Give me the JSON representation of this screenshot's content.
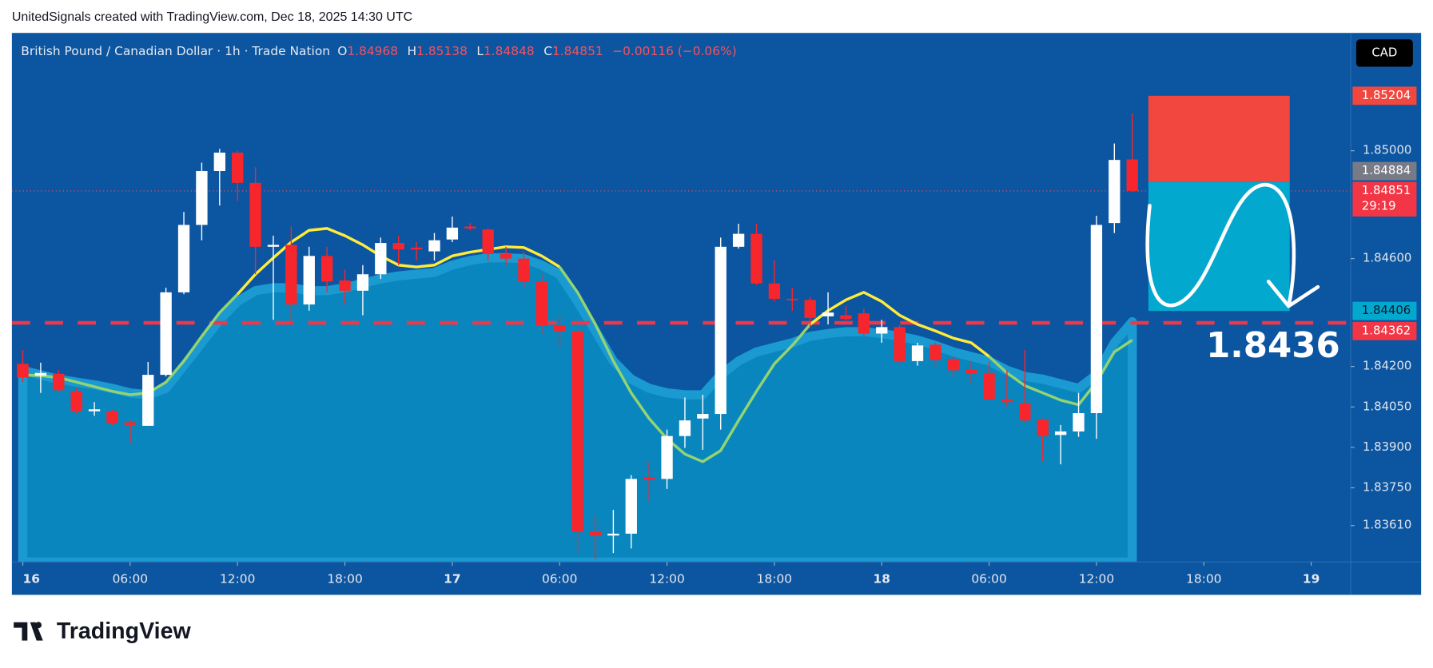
{
  "header": "UnitedSignals created with TradingView.com, Dec 18, 2025 14:30 UTC",
  "logo": "TradingView",
  "chart_data": {
    "type": "candlestick",
    "title": "British Pound / Canadian Dollar · 1h · Trade Nation",
    "ohlc_labels": [
      "O",
      "H",
      "L",
      "C"
    ],
    "change": "−0.00116 (−0.06%)",
    "currency": "CAD",
    "open": [
      1.8421,
      1.84166,
      1.84173,
      1.84108,
      1.84034,
      1.84034,
      1.83993,
      1.8398,
      1.84169,
      1.84475,
      1.84725,
      1.84925,
      1.84993,
      1.84881,
      1.84644,
      1.84651,
      1.8443,
      1.8461,
      1.84519,
      1.84481,
      1.84542,
      1.84658,
      1.84641,
      1.84627,
      1.84671,
      1.84719,
      1.84708,
      1.84617,
      1.846,
      1.84515,
      1.84353,
      1.84332,
      1.83586,
      1.83573,
      1.8358,
      1.8379,
      1.83783,
      1.83942,
      1.84007,
      1.84024,
      1.84644,
      1.84692,
      1.84508,
      1.84451,
      1.84447,
      1.84386,
      1.8439,
      1.84397,
      1.84322,
      1.84346,
      1.8422,
      1.84281,
      1.84227,
      1.8419,
      1.84176,
      1.84078,
      1.84064,
      1.84003,
      1.83946,
      1.83959,
      1.84027,
      1.84732,
      1.84968
    ],
    "high": [
      1.84261,
      1.84214,
      1.84186,
      1.84119,
      1.84068,
      1.84041,
      1.84,
      1.84217,
      1.84492,
      1.84773,
      1.84956,
      1.85007,
      1.85,
      1.84939,
      1.84685,
      1.84719,
      1.84644,
      1.84644,
      1.84559,
      1.84576,
      1.84678,
      1.84685,
      1.84661,
      1.84695,
      1.84756,
      1.84732,
      1.84712,
      1.84644,
      1.84627,
      1.84542,
      1.8439,
      1.84339,
      1.83644,
      1.83668,
      1.83797,
      1.83847,
      1.83966,
      1.84085,
      1.84095,
      1.84678,
      1.84729,
      1.84729,
      1.84593,
      1.84492,
      1.84458,
      1.84475,
      1.84424,
      1.84414,
      1.84373,
      1.84353,
      1.84288,
      1.84288,
      1.84237,
      1.8422,
      1.84217,
      1.84186,
      1.84261,
      1.84007,
      1.83983,
      1.84102,
      1.84759,
      1.85027,
      1.85138
    ],
    "low": [
      1.84142,
      1.84102,
      1.84108,
      1.84027,
      1.84017,
      1.83983,
      1.83915,
      1.8398,
      1.84163,
      1.84468,
      1.84668,
      1.84797,
      1.84814,
      1.84542,
      1.84373,
      1.84356,
      1.84407,
      1.84475,
      1.8443,
      1.8439,
      1.84525,
      1.84576,
      1.84593,
      1.84593,
      1.84661,
      1.84705,
      1.84593,
      1.84576,
      1.84492,
      1.84322,
      1.84271,
      1.83508,
      1.83485,
      1.83508,
      1.83525,
      1.83702,
      1.83746,
      1.83898,
      1.83891,
      1.83966,
      1.84637,
      1.84502,
      1.84441,
      1.84407,
      1.84346,
      1.84356,
      1.84366,
      1.84312,
      1.84288,
      1.8421,
      1.84203,
      1.84197,
      1.84163,
      1.84136,
      1.84075,
      1.84051,
      1.83993,
      1.83847,
      1.83837,
      1.83939,
      1.83932,
      1.84695,
      1.84848
    ],
    "close": [
      1.84159,
      1.84176,
      1.84112,
      1.84034,
      1.84041,
      1.8399,
      1.83983,
      1.84169,
      1.84475,
      1.84725,
      1.84925,
      1.84993,
      1.84881,
      1.84644,
      1.84651,
      1.8443,
      1.8461,
      1.84515,
      1.84481,
      1.84542,
      1.84658,
      1.84634,
      1.84634,
      1.84668,
      1.84715,
      1.84712,
      1.84617,
      1.846,
      1.84515,
      1.84353,
      1.84332,
      1.83586,
      1.83573,
      1.8358,
      1.83783,
      1.8378,
      1.83942,
      1.84,
      1.84024,
      1.84644,
      1.84692,
      1.84508,
      1.84451,
      1.84447,
      1.8438,
      1.844,
      1.84376,
      1.84322,
      1.84346,
      1.8422,
      1.84278,
      1.84224,
      1.84186,
      1.84173,
      1.84078,
      1.84068,
      1.84,
      1.83942,
      1.83959,
      1.84027,
      1.84725,
      1.84966,
      1.84851
    ],
    "up_color": "#ffffff",
    "down_color": "#f7262c",
    "area": {
      "color": "#0a86be",
      "values": [
        1.84186,
        1.84169,
        1.84153,
        1.84142,
        1.84132,
        1.84119,
        1.84102,
        1.84095,
        1.84119,
        1.84203,
        1.84288,
        1.84373,
        1.84441,
        1.84481,
        1.84492,
        1.84492,
        1.84481,
        1.84481,
        1.84492,
        1.84508,
        1.84525,
        1.84536,
        1.84542,
        1.84549,
        1.84576,
        1.84593,
        1.84603,
        1.84603,
        1.846,
        1.84576,
        1.84542,
        1.84441,
        1.84332,
        1.8422,
        1.84153,
        1.84119,
        1.84102,
        1.84095,
        1.84095,
        1.84169,
        1.8422,
        1.84254,
        1.84271,
        1.84288,
        1.84312,
        1.84322,
        1.84329,
        1.84329,
        1.84322,
        1.84312,
        1.84298,
        1.84278,
        1.84254,
        1.84237,
        1.8422,
        1.84186,
        1.84163,
        1.84153,
        1.84136,
        1.84119,
        1.84169,
        1.84288,
        1.84366
      ]
    },
    "lines": [
      {
        "color": "#93d472",
        "values": [
          1.84169,
          1.84166,
          1.84159,
          1.84142,
          1.84125,
          1.84108,
          1.84095,
          1.84102,
          1.84142,
          1.8422,
          1.84312,
          1.844,
          1.84468,
          null,
          null,
          null,
          null,
          null,
          null,
          null,
          null,
          null,
          null,
          null,
          null,
          null,
          null,
          null,
          null,
          null,
          1.84569,
          1.84475,
          1.84356,
          1.8422,
          1.84102,
          1.84007,
          1.83932,
          1.83875,
          1.83847,
          1.83888,
          1.84,
          1.84108,
          1.8421,
          1.84278,
          1.84356,
          null,
          null,
          null,
          null,
          null,
          null,
          null,
          null,
          null,
          1.84237,
          1.84176,
          1.84129,
          1.84102,
          1.84075,
          1.84058,
          1.84142,
          1.84254,
          1.84298
        ]
      },
      {
        "color": "#ffeb3b",
        "values": [
          null,
          null,
          null,
          null,
          null,
          null,
          null,
          null,
          null,
          null,
          null,
          null,
          1.84468,
          1.84542,
          1.84603,
          1.84661,
          1.84705,
          1.84712,
          1.84685,
          1.84651,
          1.8461,
          1.84576,
          1.84569,
          1.84576,
          1.8461,
          1.84624,
          1.84634,
          1.84644,
          1.84641,
          1.8461,
          1.84569,
          null,
          null,
          null,
          null,
          null,
          null,
          null,
          null,
          null,
          null,
          null,
          null,
          null,
          1.84356,
          1.84407,
          1.84447,
          1.84475,
          1.84441,
          1.8439,
          1.84356,
          1.84332,
          1.84305,
          1.84288,
          1.84237,
          null,
          null,
          null,
          null,
          null,
          null,
          null,
          null
        ]
      }
    ],
    "position": {
      "stop": 1.85204,
      "entry": 1.84884,
      "target": 1.84406,
      "x": [
        62.9,
        70.8
      ],
      "stop_color": "#f2473f",
      "target_color": "#03a8cf"
    },
    "level": {
      "value": 1.84362,
      "color": "#f23645",
      "label": "1.8436"
    },
    "countdown": "29:19",
    "xlim": [
      -0.61,
      74.21
    ],
    "xticks": [
      {
        "value": 0,
        "label": "16"
      },
      {
        "value": 6,
        "label": "06:00"
      },
      {
        "value": 12,
        "label": "12:00"
      },
      {
        "value": 18,
        "label": "18:00"
      },
      {
        "value": 24,
        "label": "17"
      },
      {
        "value": 30,
        "label": "06:00"
      },
      {
        "value": 36,
        "label": "12:00"
      },
      {
        "value": 42,
        "label": "18:00"
      },
      {
        "value": 48,
        "label": "18"
      },
      {
        "value": 54,
        "label": "06:00"
      },
      {
        "value": 60,
        "label": "12:00"
      },
      {
        "value": 66,
        "label": "18:00"
      },
      {
        "value": 72,
        "label": "19"
      }
    ],
    "ylim": [
      1.83475,
      1.85437
    ],
    "yticks": [
      {
        "value": 1.85,
        "label": "1.85000"
      },
      {
        "value": 1.846,
        "label": "1.84600"
      },
      {
        "value": 1.842,
        "label": "1.84200"
      },
      {
        "value": 1.8405,
        "label": "1.84050"
      },
      {
        "value": 1.839,
        "label": "1.83900"
      },
      {
        "value": 1.8375,
        "label": "1.83750"
      },
      {
        "value": 1.8361,
        "label": "1.83610"
      }
    ]
  }
}
